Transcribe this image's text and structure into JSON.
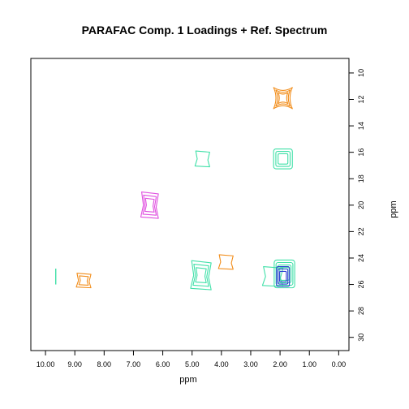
{
  "chart_data": {
    "type": "contour",
    "title": "PARAFAC Comp. 1 Loadings + Ref. Spectrum",
    "xlabel": "ppm",
    "ylabel": "ppm",
    "xlim": [
      10.5,
      -0.35
    ],
    "ylim": [
      8.9,
      31.0
    ],
    "x_ticks": [
      "10.00",
      "9.00",
      "8.00",
      "7.00",
      "6.00",
      "5.00",
      "4.00",
      "3.00",
      "2.00",
      "1.00",
      "0.00"
    ],
    "y_ticks": [
      "10",
      "12",
      "14",
      "16",
      "18",
      "20",
      "22",
      "24",
      "26",
      "28",
      "30"
    ],
    "colors": {
      "orange": "#f28e1c",
      "aquamarine": "#40e0a8",
      "violet": "#e04fe0",
      "blue": "#2a3fd0"
    },
    "peaks": [
      {
        "color": "orange",
        "x": 1.9,
        "y": 11.9,
        "rx": 0.32,
        "ry": 0.8,
        "levels": 3,
        "shape": "bowtie"
      },
      {
        "color": "aquamarine",
        "x": 1.9,
        "y": 16.5,
        "rx": 0.32,
        "ry": 0.75,
        "levels": 3,
        "shape": "square"
      },
      {
        "color": "aquamarine",
        "x": 4.65,
        "y": 16.5,
        "rx": 0.25,
        "ry": 0.6,
        "levels": 1,
        "shape": "blob"
      },
      {
        "color": "violet",
        "x": 6.45,
        "y": 20.0,
        "rx": 0.3,
        "ry": 1.0,
        "levels": 3,
        "shape": "blob"
      },
      {
        "color": "orange",
        "x": 3.85,
        "y": 24.3,
        "rx": 0.25,
        "ry": 0.55,
        "levels": 1,
        "shape": "blob"
      },
      {
        "color": "orange",
        "x": 8.7,
        "y": 25.7,
        "rx": 0.25,
        "ry": 0.55,
        "levels": 2,
        "shape": "blob"
      },
      {
        "color": "aquamarine",
        "x": 9.65,
        "y": 25.4,
        "rx": 0.03,
        "ry": 0.6,
        "levels": 1,
        "shape": "line"
      },
      {
        "color": "aquamarine",
        "x": 4.7,
        "y": 25.3,
        "rx": 0.35,
        "ry": 1.1,
        "levels": 3,
        "shape": "blob"
      },
      {
        "color": "aquamarine",
        "x": 2.25,
        "y": 25.4,
        "rx": 0.35,
        "ry": 0.75,
        "levels": 1,
        "shape": "blob"
      },
      {
        "color": "aquamarine",
        "x": 1.85,
        "y": 25.2,
        "rx": 0.35,
        "ry": 1.05,
        "levels": 4,
        "shape": "square"
      },
      {
        "color": "blue",
        "x": 1.9,
        "y": 25.4,
        "rx": 0.22,
        "ry": 0.75,
        "levels": 3,
        "shape": "square"
      }
    ]
  }
}
